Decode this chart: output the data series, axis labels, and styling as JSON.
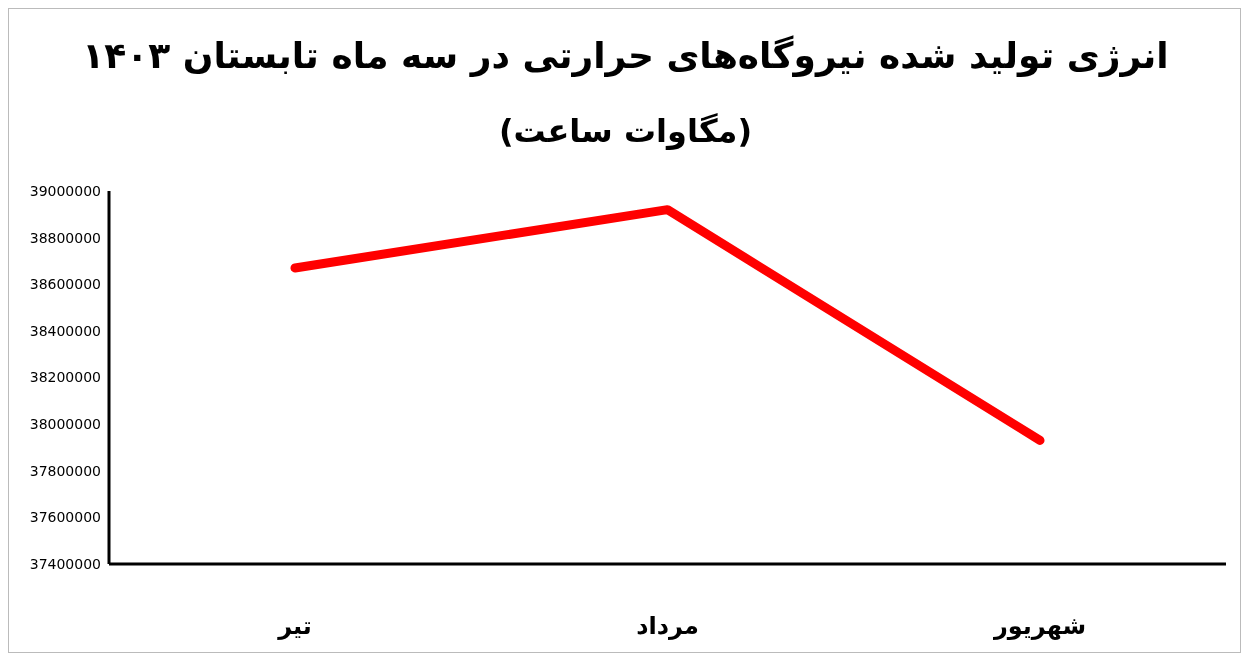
{
  "chart_data": {
    "type": "line",
    "title": "انرژی تولید شده نیروگاه‌های حرارتی در سه ماه تابستان ۱۴۰۳",
    "subtitle": "(مگاوات ساعت)",
    "categories": [
      "تیر",
      "مرداد",
      "شهریور"
    ],
    "series": [
      {
        "color": "#ff0000",
        "values": [
          38670000,
          38920000,
          37930000
        ]
      }
    ],
    "ylim": [
      37400000,
      39000000
    ],
    "yticks": [
      37400000,
      37600000,
      37800000,
      38000000,
      38200000,
      38400000,
      38600000,
      38800000,
      39000000
    ],
    "grid": false,
    "legend": false,
    "marker": "none",
    "line_style": "solid"
  }
}
